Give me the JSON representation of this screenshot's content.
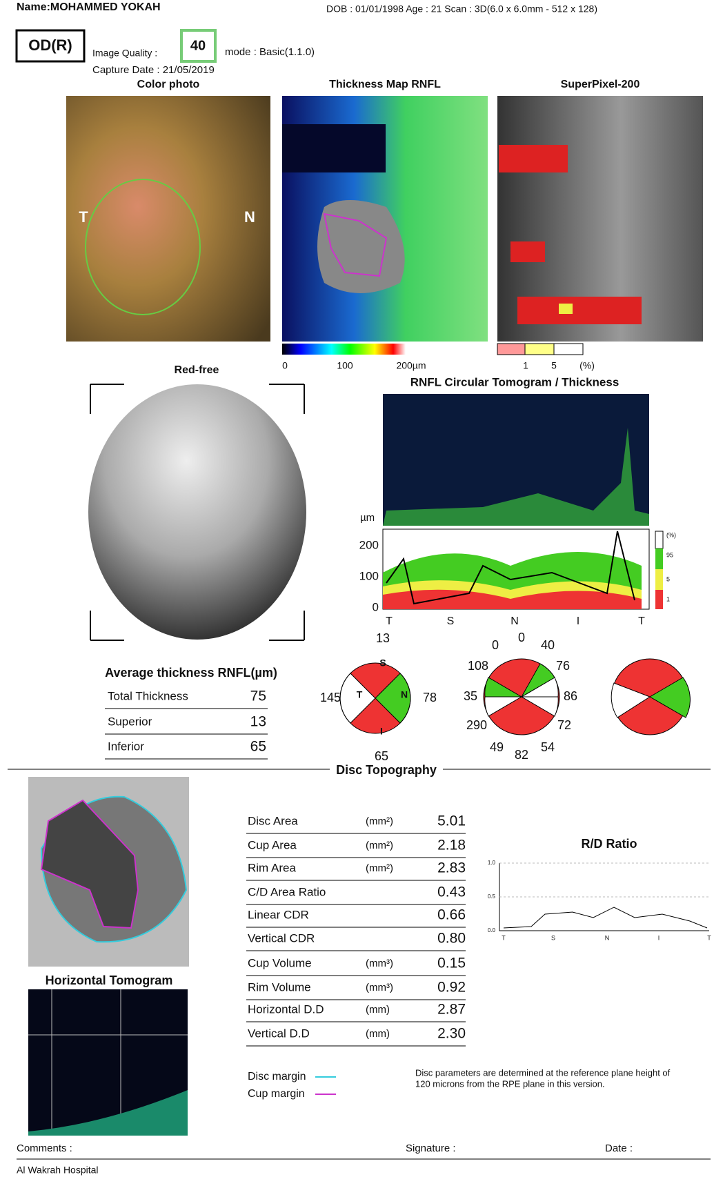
{
  "header": {
    "name": "Name:MOHAMMED YOKAH",
    "patient": "DOB : 01/01/1998   Age : 21   Scan : 3D(6.0 x 6.0mm - 512 x 128)",
    "eye": "OD(R)",
    "image_quality_label": "Image Quality :",
    "image_quality": "40",
    "mode": "mode : Basic(1.1.0)",
    "capture_date": "Capture Date : 21/05/2019"
  },
  "color_photo": {
    "title": "Color photo",
    "left": "T",
    "right": "N"
  },
  "thickness_map": {
    "title": "Thickness Map RNFL",
    "scale": [
      "0",
      "100",
      "200µm"
    ]
  },
  "superpixel": {
    "title": "SuperPixel-200",
    "scale": [
      "1",
      "5",
      "(%)"
    ]
  },
  "red_free": {
    "title": "Red-free"
  },
  "circular": {
    "title": "RNFL Circular Tomogram / Thickness",
    "unit": "µm",
    "yticks": [
      "200",
      "100",
      "0"
    ],
    "xlabels": [
      "T",
      "S",
      "N",
      "I",
      "T"
    ],
    "legend": [
      "(%)",
      "95",
      "5",
      "1"
    ]
  },
  "average": {
    "title": "Average thickness RNFL(µm)",
    "rows": [
      [
        "Total Thickness",
        "75"
      ],
      [
        "Superior",
        "13"
      ],
      [
        "Inferior",
        "65"
      ]
    ]
  },
  "quadrants": {
    "labels": [
      "S",
      "N",
      "I",
      "T"
    ],
    "values": [
      "13",
      "78",
      "65",
      "145"
    ]
  },
  "clock_hours": {
    "values": [
      "0",
      "0",
      "40",
      "76",
      "86",
      "72",
      "54",
      "82",
      "49",
      "290",
      "35",
      "108"
    ]
  },
  "disc": {
    "title": "Disc Topography",
    "rows": [
      [
        "Disc Area",
        "(mm²)",
        "5.01"
      ],
      [
        "Cup Area",
        "(mm²)",
        "2.18"
      ],
      [
        "Rim Area",
        "(mm²)",
        "2.83"
      ],
      [
        "C/D Area Ratio",
        "",
        "0.43"
      ],
      [
        "Linear CDR",
        "",
        "0.66"
      ],
      [
        "Vertical CDR",
        "",
        "0.80"
      ],
      [
        "Cup Volume",
        "(mm³)",
        "0.15"
      ],
      [
        "Rim Volume",
        "(mm³)",
        "0.92"
      ],
      [
        "Horizontal D.D",
        "(mm)",
        "2.87"
      ],
      [
        "Vertical D.D",
        "(mm)",
        "2.30"
      ]
    ],
    "tomogram_title": "Horizontal Tomogram",
    "rd_title": "R/D Ratio",
    "rd_yticks": [
      "1.0",
      "0.5",
      "0.0"
    ],
    "rd_xlabels": [
      "T",
      "S",
      "N",
      "I",
      "T"
    ],
    "legend": [
      "Disc margin",
      "Cup margin"
    ],
    "note": [
      "Disc parameters are determined at the reference plane height of",
      "120 microns from the RPE plane in this version."
    ]
  },
  "footer": {
    "comments": "Comments :",
    "signature": "Signature :",
    "date": "Date :",
    "hospital": "Al Wakrah Hospital"
  }
}
